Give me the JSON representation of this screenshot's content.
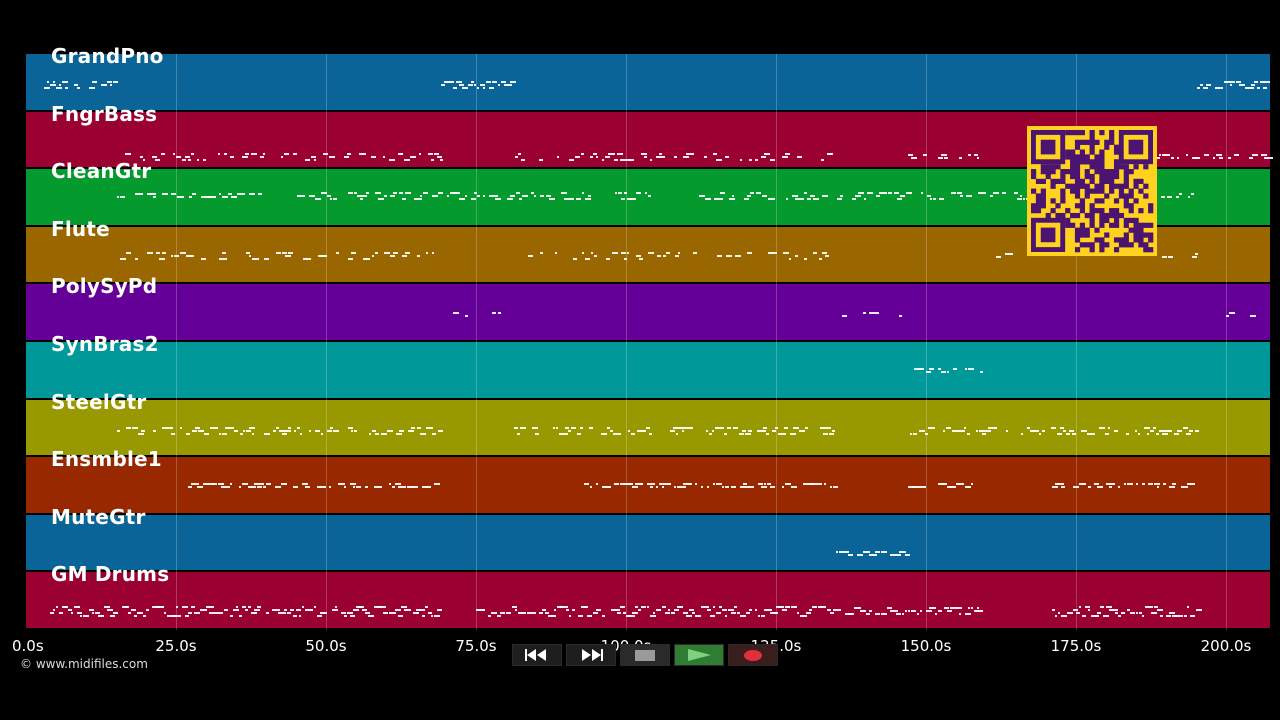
{
  "tracks": [
    {
      "name": "GrandPno",
      "color": "#0a6497"
    },
    {
      "name": "FngrBass",
      "color": "#9a0030"
    },
    {
      "name": "CleanGtr",
      "color": "#049a2d"
    },
    {
      "name": "Flute",
      "color": "#9a6600"
    },
    {
      "name": "PolySyPd",
      "color": "#640098"
    },
    {
      "name": "SynBras2",
      "color": "#009898"
    },
    {
      "name": "SteelGtr",
      "color": "#989800"
    },
    {
      "name": "Ensmble1",
      "color": "#982800"
    },
    {
      "name": "MuteGtr",
      "color": "#0a6497"
    },
    {
      "name": "GM Drums",
      "color": "#9a0030"
    }
  ],
  "timeline": {
    "ticks": [
      "0.0s",
      "25.0s",
      "50.0s",
      "75.0s",
      "100.0s",
      "125.0s",
      "150.0s",
      "175.0s",
      "200.0s"
    ]
  },
  "copyright": "© www.midifiles.com",
  "transport": {
    "rewind_icon": "rewind-icon",
    "forward_icon": "fast-forward-icon",
    "stop_icon": "stop-icon",
    "play_icon": "play-icon",
    "record_icon": "record-icon",
    "play_color": "#2e7d32",
    "record_color": "#e0303e"
  },
  "qr": {
    "color": "#ffd21f",
    "dark": "#4a1470"
  }
}
